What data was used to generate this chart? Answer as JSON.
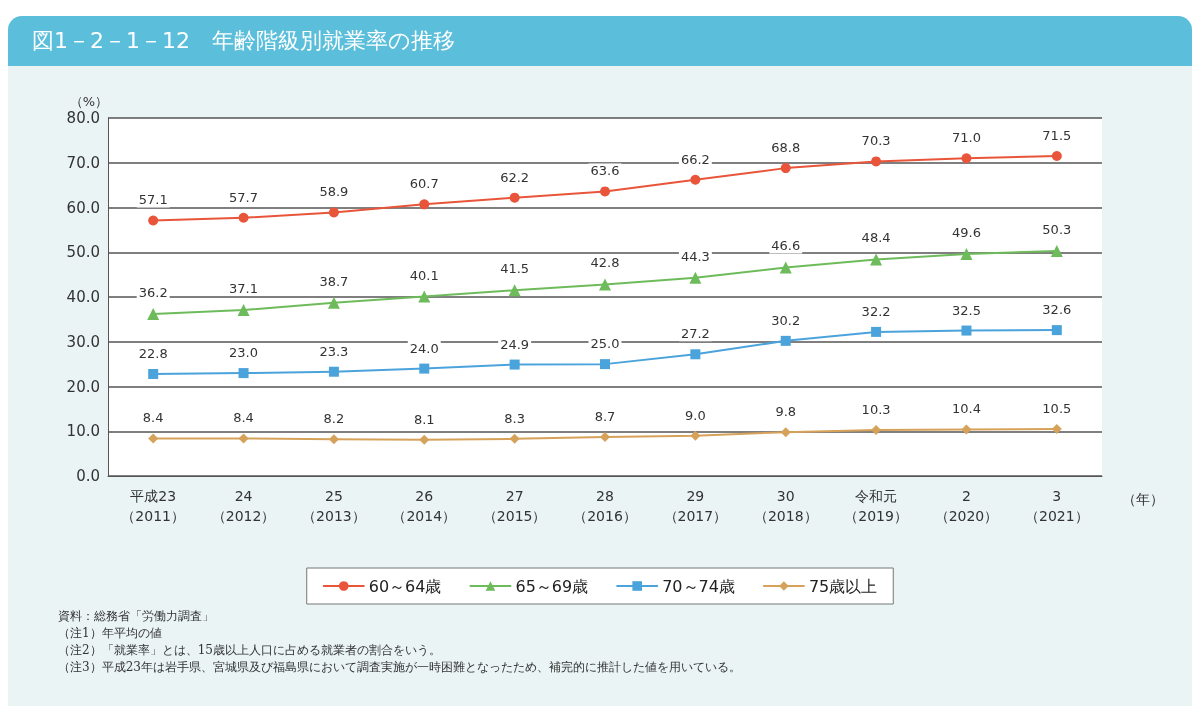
{
  "chart_data": {
    "type": "line",
    "title": "図1－2－1－12　年齢階級別就業率の推移",
    "xlabel": "（年）",
    "ylabel": "（%）",
    "categories": [
      "平成23（2011）",
      "24（2012）",
      "25（2013）",
      "26（2014）",
      "27（2015）",
      "28（2016）",
      "29（2017）",
      "30（2018）",
      "令和元（2019）",
      "2（2020）",
      "3（2021）"
    ],
    "series": [
      {
        "name": "60～64歳",
        "color": "#e8553a",
        "marker": "circle",
        "values": [
          57.1,
          57.7,
          58.9,
          60.7,
          62.2,
          63.6,
          66.2,
          68.8,
          70.3,
          71.0,
          71.5
        ],
        "value_labels": [
          "57.1",
          "57.7",
          "58.9",
          "60.7",
          "62.2",
          "63.6",
          "66.2",
          "68.8",
          "70.3",
          "71.0",
          "71.5"
        ]
      },
      {
        "name": "65～69歳",
        "color": "#6dbb5a",
        "marker": "triangle",
        "values": [
          36.2,
          37.1,
          38.7,
          40.1,
          41.5,
          42.8,
          44.3,
          46.6,
          48.4,
          49.6,
          50.3
        ],
        "value_labels": [
          "36.2",
          "37.1",
          "38.7",
          "40.1",
          "41.5",
          "42.8",
          "44.3",
          "46.6",
          "48.4",
          "49.6",
          "50.3"
        ]
      },
      {
        "name": "70～74歳",
        "color": "#4ba3dc",
        "marker": "square",
        "values": [
          22.8,
          23.0,
          23.3,
          24.0,
          24.9,
          25.0,
          27.2,
          30.2,
          32.2,
          32.5,
          32.6
        ],
        "value_labels": [
          "22.8",
          "23.0",
          "23.3",
          "24.0",
          "24.9",
          "25.0",
          "27.2",
          "30.2",
          "32.2",
          "32.5",
          "32.6"
        ]
      },
      {
        "name": "75歳以上",
        "color": "#d6a25a",
        "marker": "diamond",
        "values": [
          8.4,
          8.4,
          8.2,
          8.1,
          8.3,
          8.7,
          9.0,
          9.8,
          10.3,
          10.4,
          10.5
        ],
        "value_labels": [
          "8.4",
          "8.4",
          "8.2",
          "8.1",
          "8.3",
          "8.7",
          "9.0",
          "9.8",
          "10.3",
          "10.4",
          "10.5"
        ]
      }
    ],
    "ylim": [
      0,
      80
    ],
    "yticks": [
      {
        "value": 0,
        "label": "0.0"
      },
      {
        "value": 10,
        "label": "10.0"
      },
      {
        "value": 20,
        "label": "20.0"
      },
      {
        "value": 30,
        "label": "30.0"
      },
      {
        "value": 40,
        "label": "40.0"
      },
      {
        "value": 50,
        "label": "50.0"
      },
      {
        "value": 60,
        "label": "60.0"
      },
      {
        "value": 70,
        "label": "70.0"
      },
      {
        "value": 80,
        "label": "80.0"
      }
    ],
    "grid": "y",
    "legend": "bottom",
    "line_style": "solid",
    "annotations": [
      "資料：総務省「労働力調査」",
      "（注1）年平均の値",
      "（注2）「就業率」とは、15歳以上人口に占める就業者の割合をいう。",
      "（注3）平成23年は岩手県、宮城県及び福島県において調査実施が一時困難となったため、補完的に推計した値を用いている。"
    ]
  }
}
